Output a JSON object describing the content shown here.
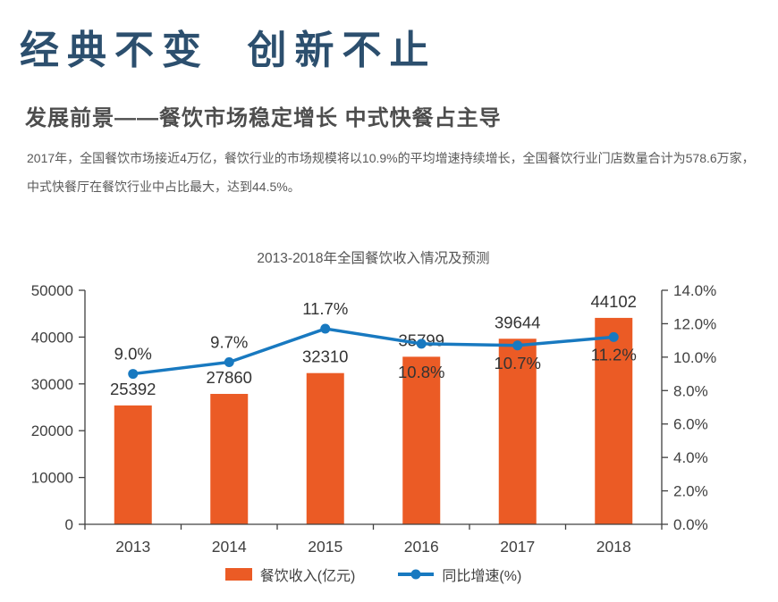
{
  "header": {
    "title": "经典不变  创新不止",
    "subtitle": "发展前景——餐饮市场稳定增长 中式快餐占主导",
    "paragraph_lines": [
      "2017年，全国餐饮市场接近4万亿，餐饮行业的市场规模将以10.9%的平均增速持续增长，全国餐饮行业门店数量合计为578.6万家，",
      "中式快餐厅在餐饮行业中占比最大，达到44.5%。"
    ]
  },
  "colors": {
    "title_blue": "#2C4F6E",
    "subtitle_gray": "#4D4D4D",
    "body_gray": "#595959",
    "bar_orange": "#EB5B25",
    "line_blue": "#1879C0",
    "axis_gray": "#404040",
    "data_label": "#333333"
  },
  "chart_data": {
    "type": "bar+line",
    "title": "2013-2018年全国餐饮收入情况及预测",
    "categories": [
      "2013",
      "2014",
      "2015",
      "2016",
      "2017",
      "2018"
    ],
    "series": [
      {
        "name": "餐饮收入(亿元)",
        "type": "bar",
        "axis": "left",
        "color": "#EB5B25",
        "values": [
          25392,
          27860,
          32310,
          35799,
          39644,
          44102
        ],
        "data_labels": [
          "25392",
          "27860",
          "32310",
          "35799",
          "39644",
          "44102"
        ]
      },
      {
        "name": "同比增速(%)",
        "type": "line",
        "axis": "right",
        "color": "#1879C0",
        "values": [
          9.0,
          9.7,
          11.7,
          10.8,
          10.7,
          11.2
        ],
        "data_labels": [
          "9.0%",
          "9.7%",
          "11.7%",
          "10.8%",
          "10.7%",
          "11.2%"
        ],
        "label_side": [
          "above",
          "above",
          "above",
          "below",
          "below",
          "below"
        ]
      }
    ],
    "left_axis": {
      "min": 0,
      "max": 50000,
      "step": 10000,
      "tick_labels": [
        "0",
        "10000",
        "20000",
        "30000",
        "40000",
        "50000"
      ]
    },
    "right_axis": {
      "min": 0,
      "max": 14,
      "step": 2,
      "tick_labels": [
        "0.0%",
        "2.0%",
        "4.0%",
        "6.0%",
        "8.0%",
        "10.0%",
        "12.0%",
        "14.0%"
      ]
    },
    "grid": false,
    "legend_position": "bottom",
    "legend": [
      {
        "label": "餐饮收入(亿元)",
        "marker": "rect",
        "color": "#EB5B25"
      },
      {
        "label": "同比增速(%)",
        "marker": "line-dot",
        "color": "#1879C0"
      }
    ]
  }
}
